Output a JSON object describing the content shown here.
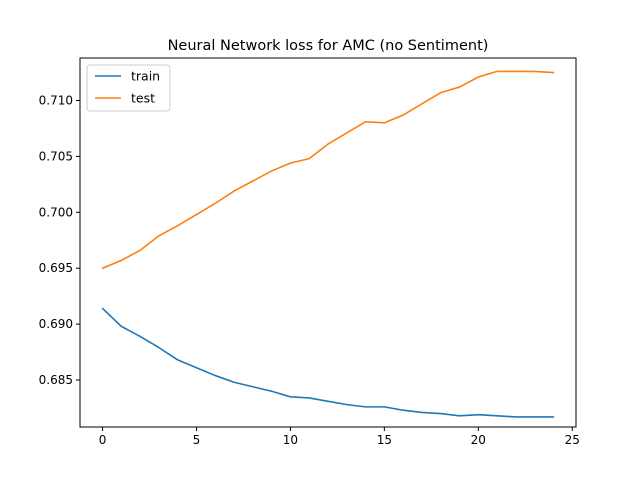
{
  "chart_data": {
    "type": "line",
    "title": "Neural Network loss for AMC (no Sentiment)",
    "xlabel": "",
    "ylabel": "",
    "x": [
      0,
      1,
      2,
      3,
      4,
      5,
      6,
      7,
      8,
      9,
      10,
      11,
      12,
      13,
      14,
      15,
      16,
      17,
      18,
      19,
      20,
      21,
      22,
      23,
      24
    ],
    "xlim": [
      -1.2,
      25.2
    ],
    "ylim": [
      0.6808,
      0.7138
    ],
    "xticks": [
      0,
      5,
      10,
      15,
      20,
      25
    ],
    "yticks": [
      0.685,
      0.69,
      0.695,
      0.7,
      0.705,
      0.71
    ],
    "xtick_labels": [
      "0",
      "5",
      "10",
      "15",
      "20",
      "25"
    ],
    "ytick_labels": [
      "0.685",
      "0.690",
      "0.695",
      "0.700",
      "0.705",
      "0.710"
    ],
    "grid": false,
    "legend_position": "top-left",
    "series": [
      {
        "name": "train",
        "color": "#1f77b4",
        "values": [
          0.6914,
          0.6898,
          0.6889,
          0.6879,
          0.6868,
          0.6861,
          0.6854,
          0.6848,
          0.6844,
          0.684,
          0.6835,
          0.6834,
          0.6831,
          0.6828,
          0.6826,
          0.6826,
          0.6823,
          0.6821,
          0.682,
          0.6818,
          0.6819,
          0.6818,
          0.6817,
          0.6817,
          0.6817
        ]
      },
      {
        "name": "test",
        "color": "#ff7f0e",
        "values": [
          0.695,
          0.6957,
          0.6966,
          0.6979,
          0.6988,
          0.6998,
          0.7008,
          0.7019,
          0.7028,
          0.7037,
          0.7044,
          0.7048,
          0.7061,
          0.7071,
          0.7081,
          0.708,
          0.7087,
          0.7097,
          0.7107,
          0.7112,
          0.7121,
          0.7126,
          0.7126,
          0.7126,
          0.7125
        ]
      }
    ]
  }
}
